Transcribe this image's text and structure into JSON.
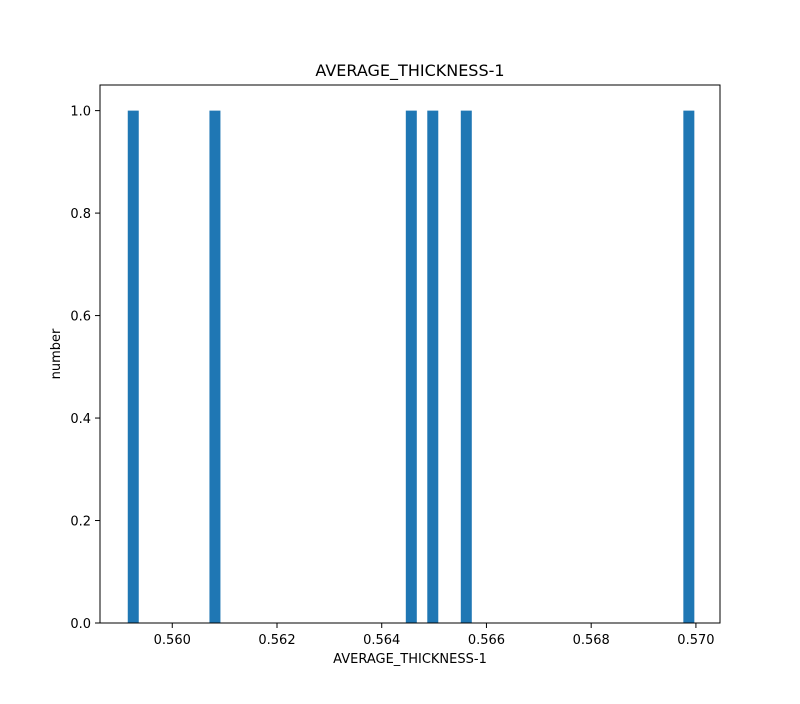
{
  "chart_data": {
    "type": "bar",
    "title": "AVERAGE_THICKNESS-1",
    "xlabel": "AVERAGE_THICKNESS-1",
    "ylabel": "number",
    "xlim": [
      0.55862,
      0.57046
    ],
    "ylim": [
      0.0,
      1.05
    ],
    "xticks": [
      0.56,
      0.562,
      0.564,
      0.566,
      0.568,
      0.57
    ],
    "xtick_labels": [
      "0.560",
      "0.562",
      "0.564",
      "0.566",
      "0.568",
      "0.570"
    ],
    "yticks": [
      0.0,
      0.2,
      0.4,
      0.6,
      0.8,
      1.0
    ],
    "ytick_labels": [
      "0.0",
      "0.2",
      "0.4",
      "0.6",
      "0.8",
      "1.0"
    ],
    "bin_width": 0.00021,
    "bars": [
      {
        "x_left": 0.55915,
        "value": 1
      },
      {
        "x_left": 0.56071,
        "value": 1
      },
      {
        "x_left": 0.56446,
        "value": 1
      },
      {
        "x_left": 0.56487,
        "value": 1
      },
      {
        "x_left": 0.56551,
        "value": 1
      },
      {
        "x_left": 0.56976,
        "value": 1
      }
    ],
    "bar_color": "#1f77b4",
    "grid": false,
    "legend": "none"
  }
}
